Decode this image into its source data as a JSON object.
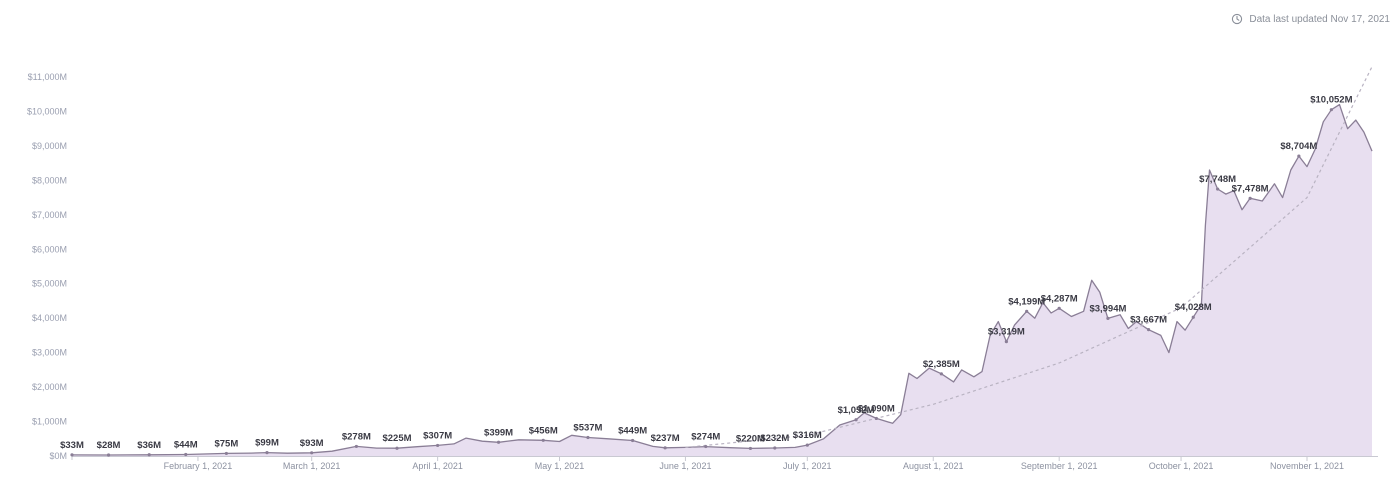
{
  "header": {
    "updated_text": "Data last updated Nov 17, 2021",
    "icon": "clock-icon"
  },
  "colors": {
    "area_fill": "#e8dff0",
    "line": "#8a7e96",
    "trend": "#b9b3c2",
    "axis": "#c9c9d2",
    "label": "#3a3a44"
  },
  "chart_data": {
    "type": "area",
    "title": "",
    "xlabel": "",
    "ylabel": "",
    "ylim": [
      0,
      11000
    ],
    "y_unit": "$M",
    "y_ticks": [
      {
        "value": 0,
        "label": "$0M"
      },
      {
        "value": 1000,
        "label": "$1,000M"
      },
      {
        "value": 2000,
        "label": "$2,000M"
      },
      {
        "value": 3000,
        "label": "$3,000M"
      },
      {
        "value": 4000,
        "label": "$4,000M"
      },
      {
        "value": 5000,
        "label": "$5,000M"
      },
      {
        "value": 6000,
        "label": "$6,000M"
      },
      {
        "value": 7000,
        "label": "$7,000M"
      },
      {
        "value": 8000,
        "label": "$8,000M"
      },
      {
        "value": 9000,
        "label": "$9,000M"
      },
      {
        "value": 10000,
        "label": "$10,000M"
      },
      {
        "value": 11000,
        "label": "$11,000M"
      }
    ],
    "x_range": [
      "2021-01-01",
      "2021-11-17"
    ],
    "x_ticks": [
      {
        "date": "2021-02-01",
        "label": "February 1, 2021"
      },
      {
        "date": "2021-03-01",
        "label": "March 1, 2021"
      },
      {
        "date": "2021-04-01",
        "label": "April 1, 2021"
      },
      {
        "date": "2021-05-01",
        "label": "May 1, 2021"
      },
      {
        "date": "2021-06-01",
        "label": "June 1, 2021"
      },
      {
        "date": "2021-07-01",
        "label": "July 1, 2021"
      },
      {
        "date": "2021-08-01",
        "label": "August 1, 2021"
      },
      {
        "date": "2021-09-01",
        "label": "September 1, 2021"
      },
      {
        "date": "2021-10-01",
        "label": "October 1, 2021"
      },
      {
        "date": "2021-11-01",
        "label": "November 1, 2021"
      }
    ],
    "series": [
      {
        "points": [
          [
            "2021-01-01",
            33
          ],
          [
            "2021-01-10",
            28
          ],
          [
            "2021-01-20",
            36
          ],
          [
            "2021-01-29",
            44
          ],
          [
            "2021-02-08",
            75
          ],
          [
            "2021-02-14",
            85
          ],
          [
            "2021-02-18",
            99
          ],
          [
            "2021-02-23",
            80
          ],
          [
            "2021-03-01",
            93
          ],
          [
            "2021-03-06",
            140
          ],
          [
            "2021-03-12",
            278
          ],
          [
            "2021-03-17",
            230
          ],
          [
            "2021-03-22",
            225
          ],
          [
            "2021-03-27",
            270
          ],
          [
            "2021-04-01",
            307
          ],
          [
            "2021-04-05",
            350
          ],
          [
            "2021-04-08",
            520
          ],
          [
            "2021-04-12",
            430
          ],
          [
            "2021-04-16",
            399
          ],
          [
            "2021-04-21",
            470
          ],
          [
            "2021-04-27",
            456
          ],
          [
            "2021-05-01",
            420
          ],
          [
            "2021-05-04",
            600
          ],
          [
            "2021-05-08",
            537
          ],
          [
            "2021-05-13",
            500
          ],
          [
            "2021-05-19",
            449
          ],
          [
            "2021-05-24",
            280
          ],
          [
            "2021-05-27",
            237
          ],
          [
            "2021-06-01",
            250
          ],
          [
            "2021-06-06",
            274
          ],
          [
            "2021-06-12",
            240
          ],
          [
            "2021-06-17",
            220
          ],
          [
            "2021-06-23",
            232
          ],
          [
            "2021-06-28",
            250
          ],
          [
            "2021-07-01",
            316
          ],
          [
            "2021-07-05",
            500
          ],
          [
            "2021-07-09",
            900
          ],
          [
            "2021-07-13",
            1052
          ],
          [
            "2021-07-15",
            1250
          ],
          [
            "2021-07-18",
            1090
          ],
          [
            "2021-07-22",
            950
          ],
          [
            "2021-07-24",
            1200
          ],
          [
            "2021-07-26",
            2400
          ],
          [
            "2021-07-28",
            2250
          ],
          [
            "2021-07-31",
            2550
          ],
          [
            "2021-08-03",
            2385
          ],
          [
            "2021-08-06",
            2150
          ],
          [
            "2021-08-08",
            2500
          ],
          [
            "2021-08-11",
            2300
          ],
          [
            "2021-08-13",
            2450
          ],
          [
            "2021-08-15",
            3500
          ],
          [
            "2021-08-17",
            3900
          ],
          [
            "2021-08-19",
            3319
          ],
          [
            "2021-08-21",
            3800
          ],
          [
            "2021-08-24",
            4199
          ],
          [
            "2021-08-26",
            4000
          ],
          [
            "2021-08-28",
            4450
          ],
          [
            "2021-08-30",
            4150
          ],
          [
            "2021-09-01",
            4287
          ],
          [
            "2021-09-04",
            4050
          ],
          [
            "2021-09-07",
            4200
          ],
          [
            "2021-09-09",
            5100
          ],
          [
            "2021-09-11",
            4750
          ],
          [
            "2021-09-13",
            3994
          ],
          [
            "2021-09-16",
            4100
          ],
          [
            "2021-09-18",
            3700
          ],
          [
            "2021-09-20",
            3900
          ],
          [
            "2021-09-23",
            3667
          ],
          [
            "2021-09-26",
            3500
          ],
          [
            "2021-09-28",
            3000
          ],
          [
            "2021-09-30",
            3900
          ],
          [
            "2021-10-02",
            3650
          ],
          [
            "2021-10-04",
            4028
          ],
          [
            "2021-10-06",
            4400
          ],
          [
            "2021-10-07",
            6700
          ],
          [
            "2021-10-08",
            8300
          ],
          [
            "2021-10-10",
            7748
          ],
          [
            "2021-10-12",
            7600
          ],
          [
            "2021-10-14",
            7700
          ],
          [
            "2021-10-16",
            7150
          ],
          [
            "2021-10-18",
            7478
          ],
          [
            "2021-10-21",
            7400
          ],
          [
            "2021-10-24",
            7900
          ],
          [
            "2021-10-26",
            7500
          ],
          [
            "2021-10-28",
            8300
          ],
          [
            "2021-10-30",
            8704
          ],
          [
            "2021-11-01",
            8400
          ],
          [
            "2021-11-03",
            8900
          ],
          [
            "2021-11-05",
            9700
          ],
          [
            "2021-11-07",
            10052
          ],
          [
            "2021-11-09",
            10200
          ],
          [
            "2021-11-11",
            9500
          ],
          [
            "2021-11-13",
            9750
          ],
          [
            "2021-11-15",
            9400
          ],
          [
            "2021-11-17",
            8850
          ]
        ]
      }
    ],
    "data_labels": [
      {
        "date": "2021-01-01",
        "value": 33,
        "label": "$33M"
      },
      {
        "date": "2021-01-10",
        "value": 28,
        "label": "$28M"
      },
      {
        "date": "2021-01-20",
        "value": 36,
        "label": "$36M"
      },
      {
        "date": "2021-01-29",
        "value": 44,
        "label": "$44M"
      },
      {
        "date": "2021-02-08",
        "value": 75,
        "label": "$75M"
      },
      {
        "date": "2021-02-18",
        "value": 99,
        "label": "$99M"
      },
      {
        "date": "2021-03-01",
        "value": 93,
        "label": "$93M"
      },
      {
        "date": "2021-03-12",
        "value": 278,
        "label": "$278M"
      },
      {
        "date": "2021-03-22",
        "value": 225,
        "label": "$225M"
      },
      {
        "date": "2021-04-01",
        "value": 307,
        "label": "$307M"
      },
      {
        "date": "2021-04-16",
        "value": 399,
        "label": "$399M"
      },
      {
        "date": "2021-04-27",
        "value": 456,
        "label": "$456M"
      },
      {
        "date": "2021-05-08",
        "value": 537,
        "label": "$537M"
      },
      {
        "date": "2021-05-19",
        "value": 449,
        "label": "$449M"
      },
      {
        "date": "2021-05-27",
        "value": 237,
        "label": "$237M"
      },
      {
        "date": "2021-06-06",
        "value": 274,
        "label": "$274M"
      },
      {
        "date": "2021-06-17",
        "value": 220,
        "label": "$220M"
      },
      {
        "date": "2021-06-23",
        "value": 232,
        "label": "$232M"
      },
      {
        "date": "2021-07-01",
        "value": 316,
        "label": "$316M"
      },
      {
        "date": "2021-07-13",
        "value": 1052,
        "label": "$1,052M"
      },
      {
        "date": "2021-07-18",
        "value": 1090,
        "label": "$1,090M"
      },
      {
        "date": "2021-08-03",
        "value": 2385,
        "label": "$2,385M"
      },
      {
        "date": "2021-08-19",
        "value": 3319,
        "label": "$3,319M"
      },
      {
        "date": "2021-08-24",
        "value": 4199,
        "label": "$4,199M"
      },
      {
        "date": "2021-09-01",
        "value": 4287,
        "label": "$4,287M"
      },
      {
        "date": "2021-09-13",
        "value": 3994,
        "label": "$3,994M"
      },
      {
        "date": "2021-09-23",
        "value": 3667,
        "label": "$3,667M"
      },
      {
        "date": "2021-10-04",
        "value": 4028,
        "label": "$4,028M"
      },
      {
        "date": "2021-10-10",
        "value": 7748,
        "label": "$7,748M"
      },
      {
        "date": "2021-10-18",
        "value": 7478,
        "label": "$7,478M"
      },
      {
        "date": "2021-10-30",
        "value": 8704,
        "label": "$8,704M"
      },
      {
        "date": "2021-11-07",
        "value": 10052,
        "label": "$10,052M"
      }
    ],
    "trend_line": {
      "style": "dashed",
      "points": [
        [
          "2021-06-01",
          250
        ],
        [
          "2021-07-01",
          600
        ],
        [
          "2021-08-01",
          1500
        ],
        [
          "2021-09-01",
          2700
        ],
        [
          "2021-10-01",
          4300
        ],
        [
          "2021-11-01",
          7500
        ],
        [
          "2021-11-17",
          11300
        ]
      ]
    },
    "grid": false,
    "legend": "none"
  }
}
